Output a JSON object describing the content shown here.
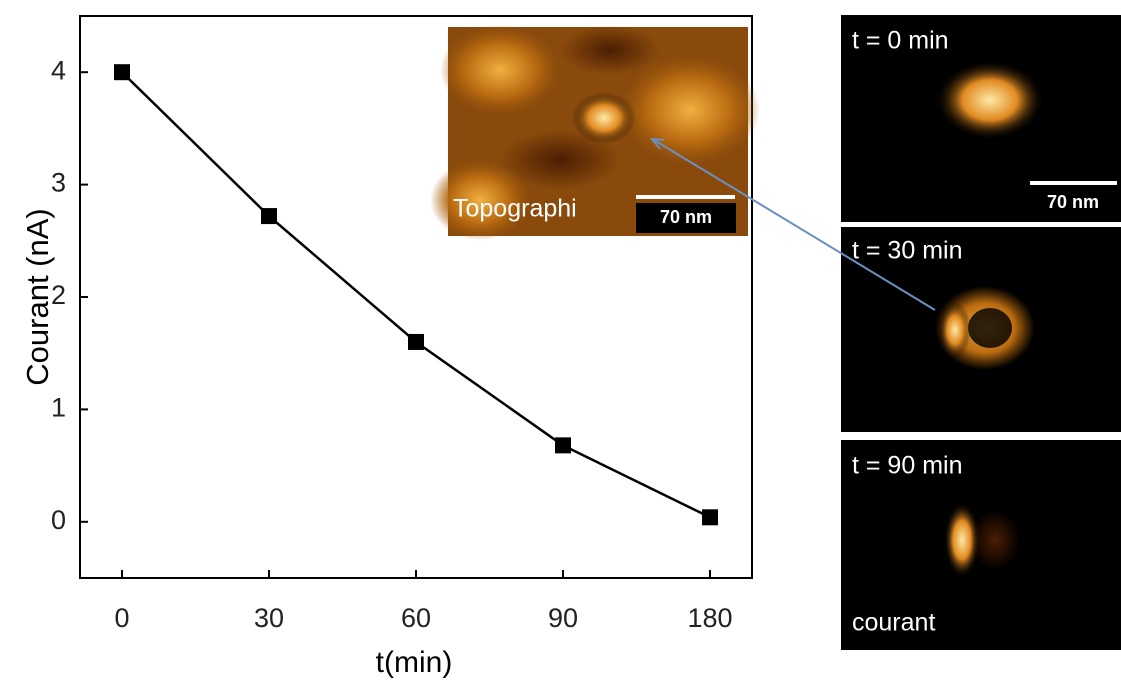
{
  "chart_data": {
    "type": "line",
    "xlabel": "t(min)",
    "ylabel": "Courant (nA)",
    "categories": [
      "0",
      "30",
      "60",
      "90",
      "180"
    ],
    "values": [
      4.0,
      2.72,
      1.6,
      0.68,
      0.04
    ],
    "color": "#000000",
    "ylim": [
      -0.5,
      4.5
    ],
    "yticks": [
      0,
      1,
      2,
      3,
      4
    ],
    "inset_label": "Topographi",
    "scale_bar": "70 nm",
    "panel_labels": [
      "t = 0 min",
      "t = 30 min",
      "t = 90 min"
    ],
    "panel_caption": "courant"
  }
}
